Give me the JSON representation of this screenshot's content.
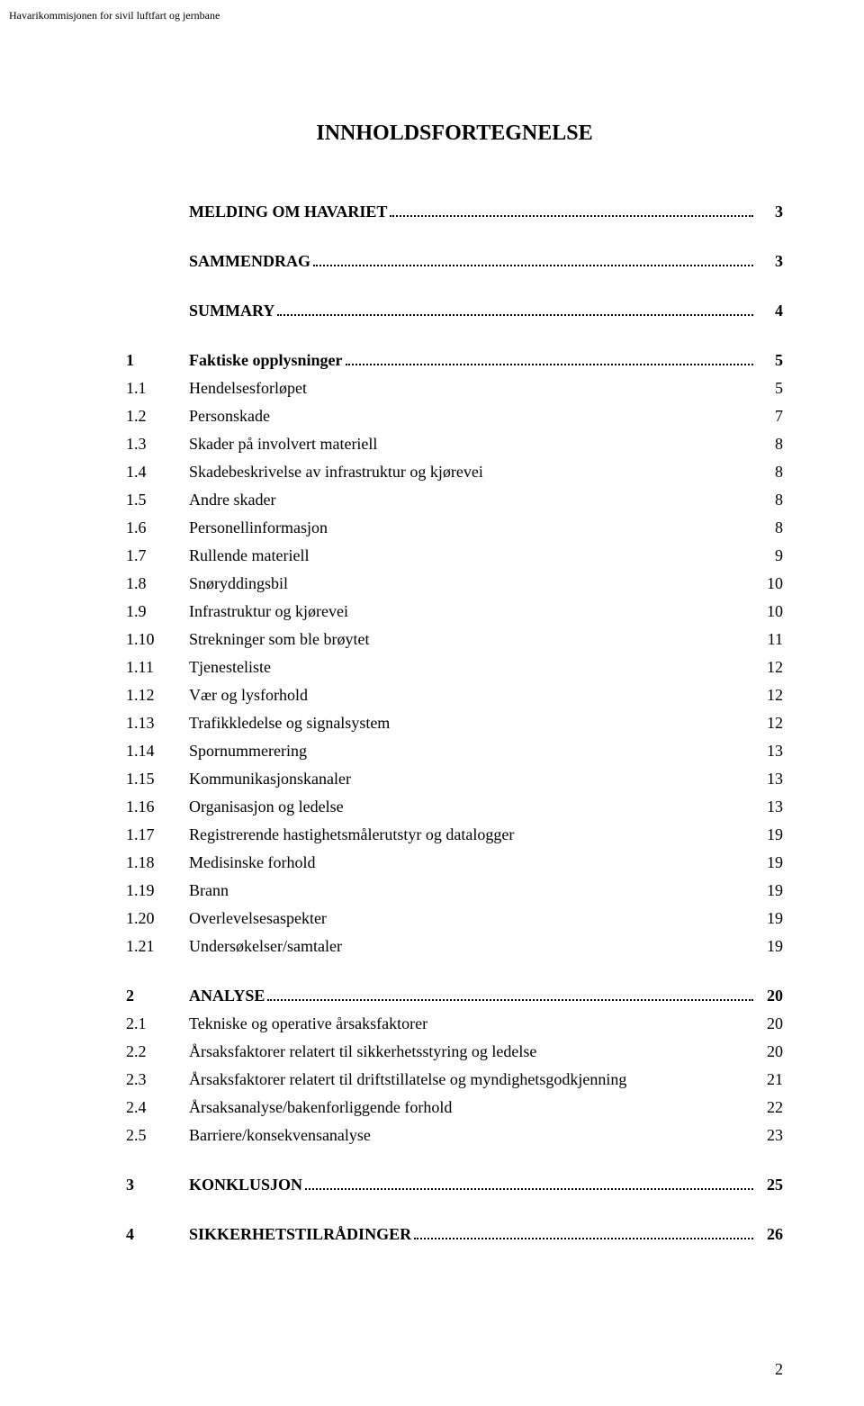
{
  "header_text": "Havarikommisjonen for sivil luftfart og jernbane",
  "title": "INNHOLDSFORTEGNELSE",
  "page_number": "2",
  "entries": [
    {
      "num": "",
      "text": "MELDING OM HAVARIET",
      "page": "3",
      "bold": true,
      "dots": true,
      "first": true
    },
    {
      "num": "",
      "text": "SAMMENDRAG",
      "page": "3",
      "bold": true,
      "dots": true
    },
    {
      "num": "",
      "text": "SUMMARY",
      "page": "4",
      "bold": true,
      "dots": true
    },
    {
      "num": "1",
      "text": "Faktiske opplysninger",
      "page": "5",
      "bold": true,
      "dots": true
    },
    {
      "num": "1.1",
      "text": "Hendelsesforløpet",
      "page": "5",
      "bold": false,
      "dots": false
    },
    {
      "num": "1.2",
      "text": "Personskade",
      "page": "7",
      "bold": false,
      "dots": false
    },
    {
      "num": "1.3",
      "text": "Skader på involvert materiell",
      "page": "8",
      "bold": false,
      "dots": false
    },
    {
      "num": "1.4",
      "text": "Skadebeskrivelse av infrastruktur og kjørevei",
      "page": "8",
      "bold": false,
      "dots": false
    },
    {
      "num": "1.5",
      "text": "Andre skader",
      "page": "8",
      "bold": false,
      "dots": false
    },
    {
      "num": "1.6",
      "text": "Personellinformasjon",
      "page": "8",
      "bold": false,
      "dots": false
    },
    {
      "num": "1.7",
      "text": "Rullende materiell",
      "page": "9",
      "bold": false,
      "dots": false
    },
    {
      "num": "1.8",
      "text": "Snøryddingsbil",
      "page": "10",
      "bold": false,
      "dots": false
    },
    {
      "num": "1.9",
      "text": "Infrastruktur og kjørevei",
      "page": "10",
      "bold": false,
      "dots": false
    },
    {
      "num": "1.10",
      "text": "Strekninger som ble brøytet",
      "page": "11",
      "bold": false,
      "dots": false
    },
    {
      "num": "1.11",
      "text": "Tjenesteliste",
      "page": "12",
      "bold": false,
      "dots": false
    },
    {
      "num": "1.12",
      "text": "Vær og lysforhold",
      "page": "12",
      "bold": false,
      "dots": false
    },
    {
      "num": "1.13",
      "text": "Trafikkledelse og signalsystem",
      "page": "12",
      "bold": false,
      "dots": false
    },
    {
      "num": "1.14",
      "text": "Spornummerering",
      "page": "13",
      "bold": false,
      "dots": false
    },
    {
      "num": "1.15",
      "text": "Kommunikasjonskanaler",
      "page": "13",
      "bold": false,
      "dots": false
    },
    {
      "num": "1.16",
      "text": "Organisasjon og ledelse",
      "page": "13",
      "bold": false,
      "dots": false
    },
    {
      "num": "1.17",
      "text": "Registrerende hastighetsmålerutstyr og datalogger",
      "page": "19",
      "bold": false,
      "dots": false
    },
    {
      "num": "1.18",
      "text": "Medisinske forhold",
      "page": "19",
      "bold": false,
      "dots": false
    },
    {
      "num": "1.19",
      "text": "Brann",
      "page": "19",
      "bold": false,
      "dots": false
    },
    {
      "num": "1.20",
      "text": "Overlevelsesaspekter",
      "page": "19",
      "bold": false,
      "dots": false
    },
    {
      "num": "1.21",
      "text": "Undersøkelser/samtaler",
      "page": "19",
      "bold": false,
      "dots": false
    },
    {
      "num": "2",
      "text": "ANALYSE",
      "page": "20",
      "bold": true,
      "dots": true
    },
    {
      "num": "2.1",
      "text": "Tekniske og operative årsaksfaktorer",
      "page": "20",
      "bold": false,
      "dots": false
    },
    {
      "num": "2.2",
      "text": "Årsaksfaktorer relatert til sikkerhetsstyring og ledelse",
      "page": "20",
      "bold": false,
      "dots": false
    },
    {
      "num": "2.3",
      "text": "Årsaksfaktorer relatert til driftstillatelse og myndighetsgodkjenning",
      "page": "21",
      "bold": false,
      "dots": false
    },
    {
      "num": "2.4",
      "text": "Årsaksanalyse/bakenforliggende forhold",
      "page": "22",
      "bold": false,
      "dots": false
    },
    {
      "num": "2.5",
      "text": "Barriere/konsekvensanalyse",
      "page": "23",
      "bold": false,
      "dots": false
    },
    {
      "num": "3",
      "text": "KONKLUSJON",
      "page": "25",
      "bold": true,
      "dots": true
    },
    {
      "num": "4",
      "text": "SIKKERHETSTILRÅDINGER",
      "page": "26",
      "bold": true,
      "dots": true
    }
  ]
}
